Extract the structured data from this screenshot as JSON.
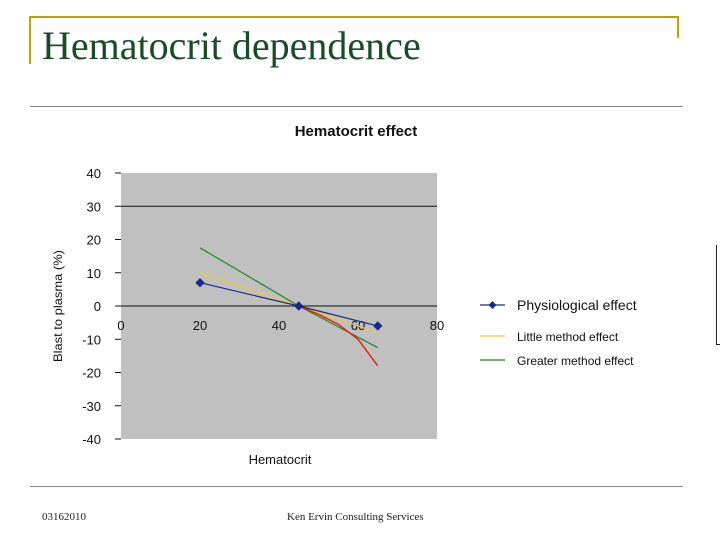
{
  "slide": {
    "title": "Hematocrit dependence",
    "footer_date": "03162010",
    "footer_company": "Ken Ervin Consulting Services"
  },
  "colors": {
    "title": "#1a4b27",
    "frame": "#b8a600",
    "plot_background": "#c0c0c0",
    "physiological": "#1a2a8c",
    "little": "#f0c640",
    "greater": "#1f8a1f",
    "curve": "#e8231c"
  },
  "chart_data": {
    "type": "line",
    "title": "Hematocrit effect",
    "xlabel": "Hematocrit",
    "ylabel": "Blast to plasma (%)",
    "xlim": [
      0,
      80
    ],
    "ylim": [
      -40,
      40
    ],
    "x_ticks": [
      "0",
      "20",
      "40",
      "60",
      "80"
    ],
    "y_ticks": [
      "40",
      "30",
      "20",
      "10",
      "0",
      "-10",
      "-20",
      "-30",
      "-40"
    ],
    "gridlines_y": [
      30
    ],
    "legend_position": "right",
    "series": [
      {
        "name": "Physiological effect",
        "color": "#1a2a8c",
        "marker": "diamond",
        "points": [
          [
            20,
            7
          ],
          [
            45,
            0
          ],
          [
            65,
            -6
          ]
        ]
      },
      {
        "name": "Little method effect",
        "color": "#f0c640",
        "marker": "none",
        "points": [
          [
            20,
            10
          ],
          [
            45,
            0
          ],
          [
            65,
            -8
          ]
        ]
      },
      {
        "name": "Greater method effect",
        "color": "#1f8a1f",
        "marker": "none",
        "points": [
          [
            20,
            17.5
          ],
          [
            45,
            0
          ],
          [
            65,
            -12.5
          ]
        ]
      },
      {
        "name": "",
        "color": "#e8231c",
        "marker": "none",
        "in_legend": false,
        "points": [
          [
            45,
            0
          ],
          [
            50,
            -2.5
          ],
          [
            55,
            -5.5
          ],
          [
            60,
            -10
          ],
          [
            65,
            -18
          ]
        ]
      }
    ]
  }
}
